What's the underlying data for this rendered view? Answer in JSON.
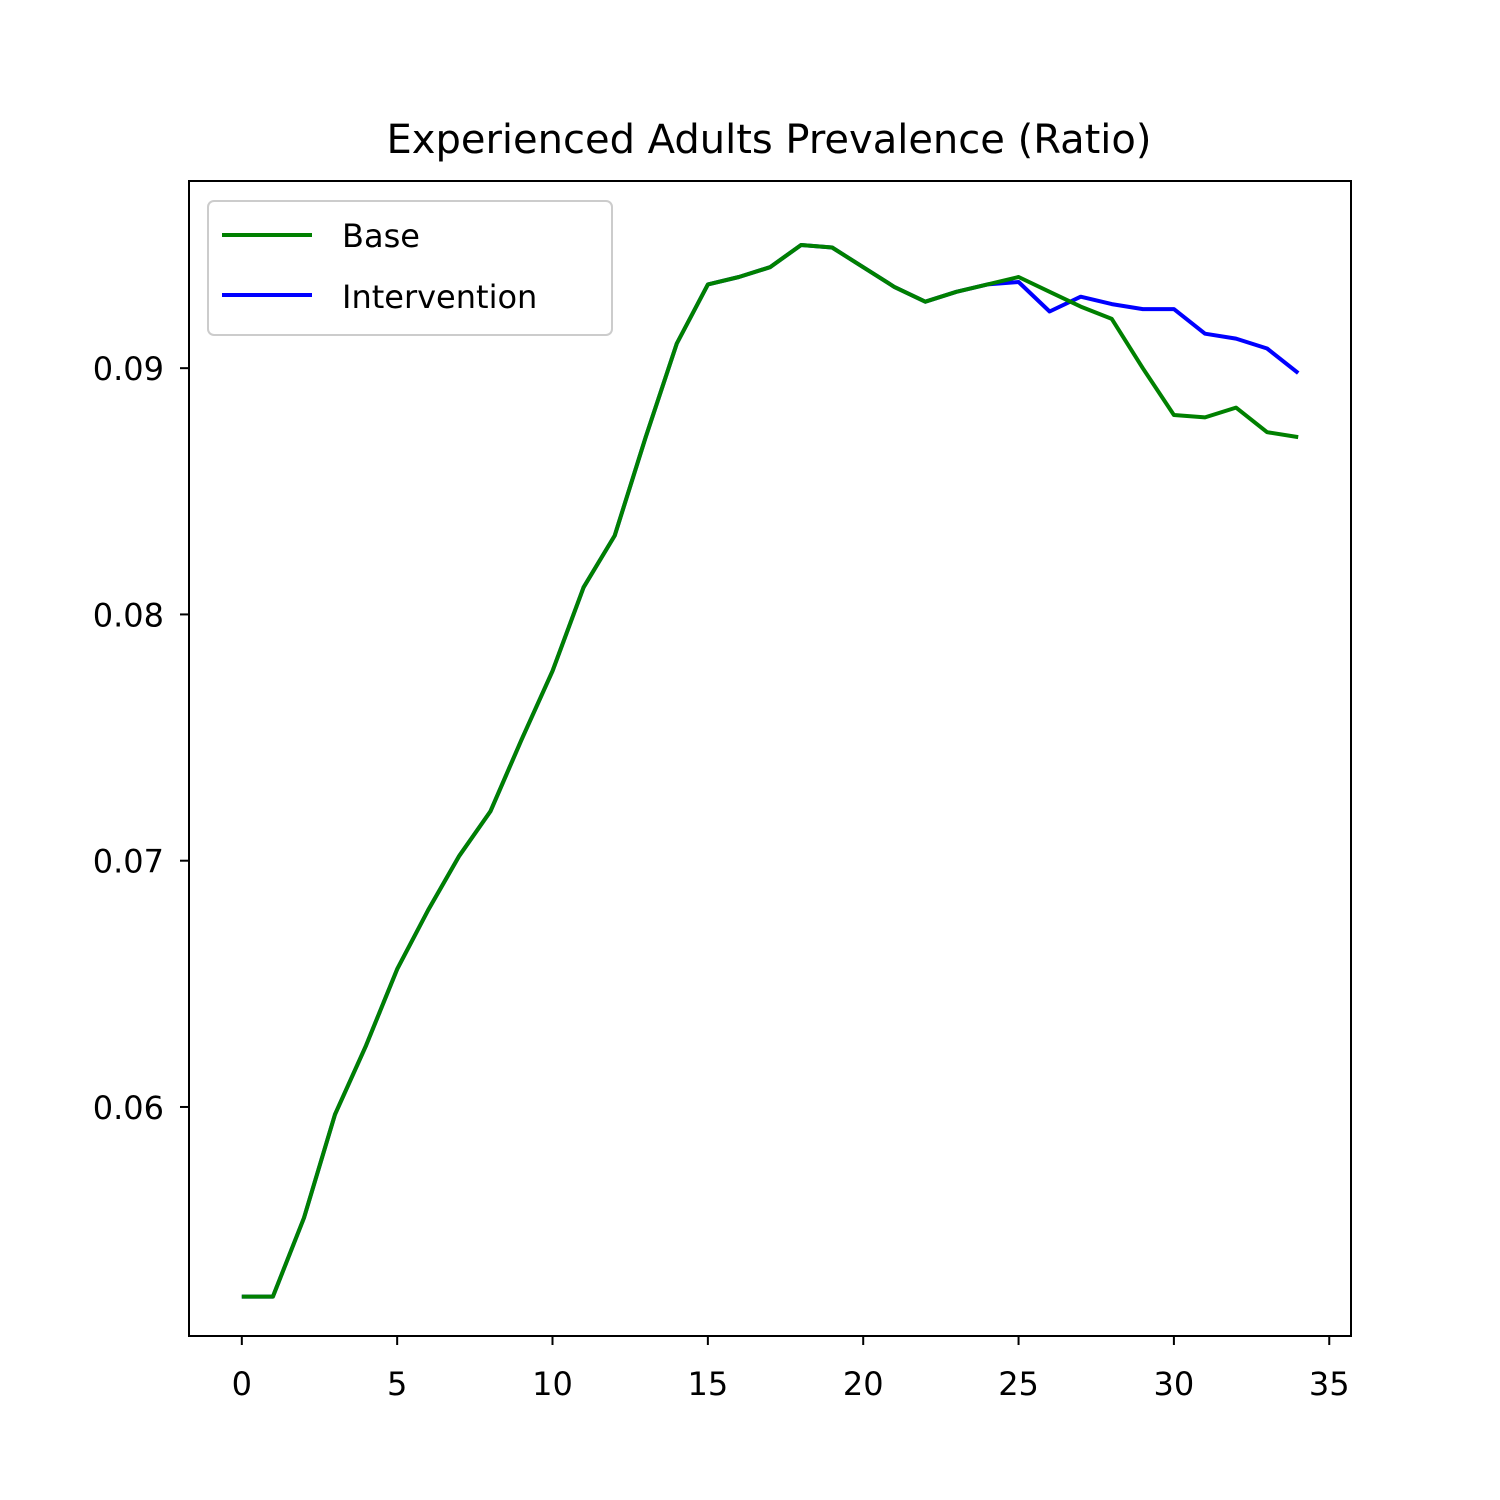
{
  "chart_data": {
    "type": "line",
    "title": "Experienced Adults Prevalence (Ratio)",
    "xlabel": "",
    "ylabel": "",
    "xlim": [
      -1.7,
      35.7
    ],
    "ylim": [
      0.0507,
      0.0976
    ],
    "xticks": [
      0,
      5,
      10,
      15,
      20,
      25,
      30,
      35
    ],
    "yticks": [
      0.06,
      0.07,
      0.08,
      0.09
    ],
    "ytick_labels": [
      "0.06",
      "0.07",
      "0.08",
      "0.09"
    ],
    "grid": false,
    "legend": {
      "placement": "top-left"
    },
    "x": [
      0,
      1,
      2,
      3,
      4,
      5,
      6,
      7,
      8,
      9,
      10,
      11,
      12,
      13,
      14,
      15,
      16,
      17,
      18,
      19,
      20,
      21,
      22,
      23,
      24,
      25,
      26,
      27,
      28,
      29,
      30,
      31,
      32,
      33,
      34
    ],
    "series": [
      {
        "name": "Intervention",
        "color": "#0000ff",
        "values": [
          0.0523,
          0.0523,
          0.0555,
          0.0597,
          0.0625,
          0.0656,
          0.068,
          0.0702,
          0.072,
          0.0749,
          0.0777,
          0.0811,
          0.0832,
          0.0872,
          0.091,
          0.0934,
          0.0937,
          0.0941,
          0.095,
          0.0949,
          0.0941,
          0.0933,
          0.0927,
          0.0931,
          0.0934,
          0.0935,
          0.0923,
          0.0929,
          0.0926,
          0.0924,
          0.0924,
          0.0914,
          0.0912,
          0.0908,
          0.0898
        ]
      },
      {
        "name": "Base",
        "color": "#008000",
        "values": [
          0.0523,
          0.0523,
          0.0555,
          0.0597,
          0.0625,
          0.0656,
          0.068,
          0.0702,
          0.072,
          0.0749,
          0.0777,
          0.0811,
          0.0832,
          0.0872,
          0.091,
          0.0934,
          0.0937,
          0.0941,
          0.095,
          0.0949,
          0.0941,
          0.0933,
          0.0927,
          0.0931,
          0.0934,
          0.0937,
          0.0931,
          0.0925,
          0.092,
          0.09,
          0.0881,
          0.088,
          0.0884,
          0.0874,
          0.0872
        ]
      }
    ]
  },
  "legend_items": [
    {
      "label": "Base",
      "color": "#008000"
    },
    {
      "label": "Intervention",
      "color": "#0000ff"
    }
  ]
}
